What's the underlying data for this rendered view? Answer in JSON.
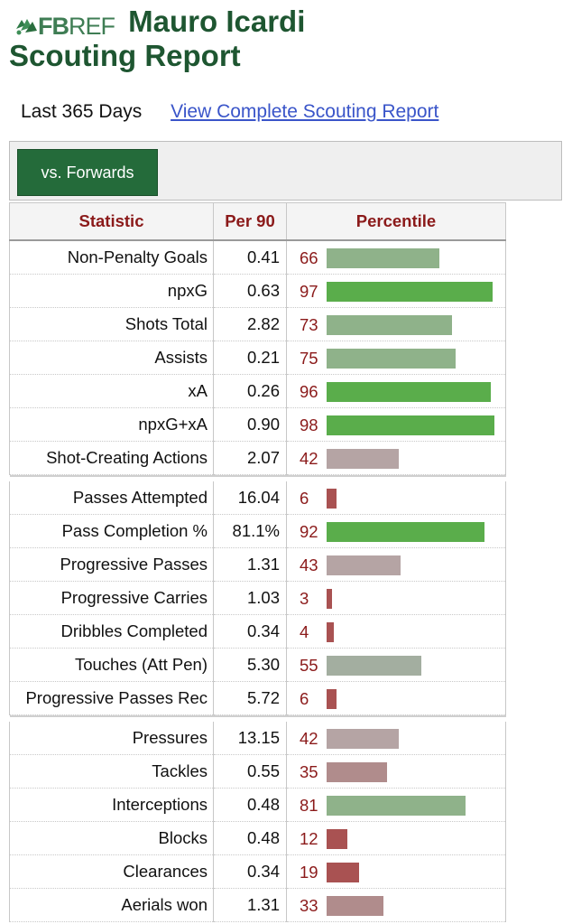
{
  "header": {
    "logo_bold": "FB",
    "logo_light": "REF",
    "player_name": "Mauro Icardi",
    "report_title": "Scouting Report"
  },
  "subline": {
    "period": "Last 365 Days",
    "link": "View Complete Scouting Report"
  },
  "tabs": [
    {
      "label": "vs. Forwards"
    }
  ],
  "table": {
    "headers": {
      "statistic": "Statistic",
      "per90": "Per 90",
      "percentile": "Percentile"
    },
    "groups": [
      [
        {
          "stat": "Non-Penalty Goals",
          "per90": "0.41",
          "percentile": 66
        },
        {
          "stat": "npxG",
          "per90": "0.63",
          "percentile": 97
        },
        {
          "stat": "Shots Total",
          "per90": "2.82",
          "percentile": 73
        },
        {
          "stat": "Assists",
          "per90": "0.21",
          "percentile": 75
        },
        {
          "stat": "xA",
          "per90": "0.26",
          "percentile": 96
        },
        {
          "stat": "npxG+xA",
          "per90": "0.90",
          "percentile": 98
        },
        {
          "stat": "Shot-Creating Actions",
          "per90": "2.07",
          "percentile": 42
        }
      ],
      [
        {
          "stat": "Passes Attempted",
          "per90": "16.04",
          "percentile": 6
        },
        {
          "stat": "Pass Completion %",
          "per90": "81.1%",
          "percentile": 92
        },
        {
          "stat": "Progressive Passes",
          "per90": "1.31",
          "percentile": 43
        },
        {
          "stat": "Progressive Carries",
          "per90": "1.03",
          "percentile": 3
        },
        {
          "stat": "Dribbles Completed",
          "per90": "0.34",
          "percentile": 4
        },
        {
          "stat": "Touches (Att Pen)",
          "per90": "5.30",
          "percentile": 55
        },
        {
          "stat": "Progressive Passes Rec",
          "per90": "5.72",
          "percentile": 6
        }
      ],
      [
        {
          "stat": "Pressures",
          "per90": "13.15",
          "percentile": 42
        },
        {
          "stat": "Tackles",
          "per90": "0.55",
          "percentile": 35
        },
        {
          "stat": "Interceptions",
          "per90": "0.48",
          "percentile": 81
        },
        {
          "stat": "Blocks",
          "per90": "0.48",
          "percentile": 12
        },
        {
          "stat": "Clearances",
          "per90": "0.34",
          "percentile": 19
        },
        {
          "stat": "Aerials won",
          "per90": "1.31",
          "percentile": 33
        }
      ]
    ]
  },
  "colors": {
    "brand_green": "#1e5631",
    "percentile_text": "#8b1a1a",
    "link": "#3a55c9"
  }
}
